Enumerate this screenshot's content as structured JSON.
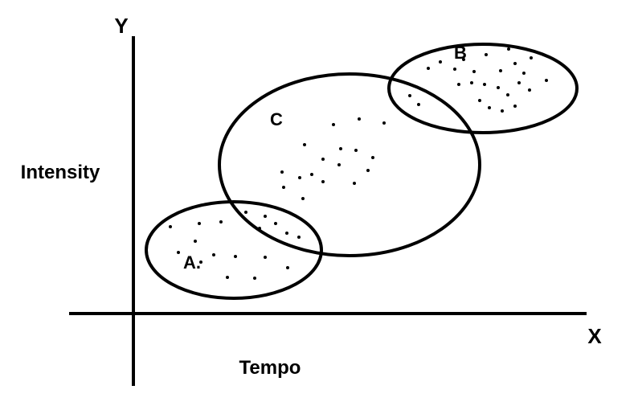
{
  "axes": {
    "x_letter": "X",
    "y_letter": "Y",
    "x_title": "Tempo",
    "y_title": "Intensity"
  },
  "clusters": [
    {
      "id": "a",
      "label": "A."
    },
    {
      "id": "b",
      "label": "B"
    },
    {
      "id": "c",
      "label": "C"
    }
  ],
  "colors": {
    "ink": "#000000",
    "background": "#ffffff"
  }
}
